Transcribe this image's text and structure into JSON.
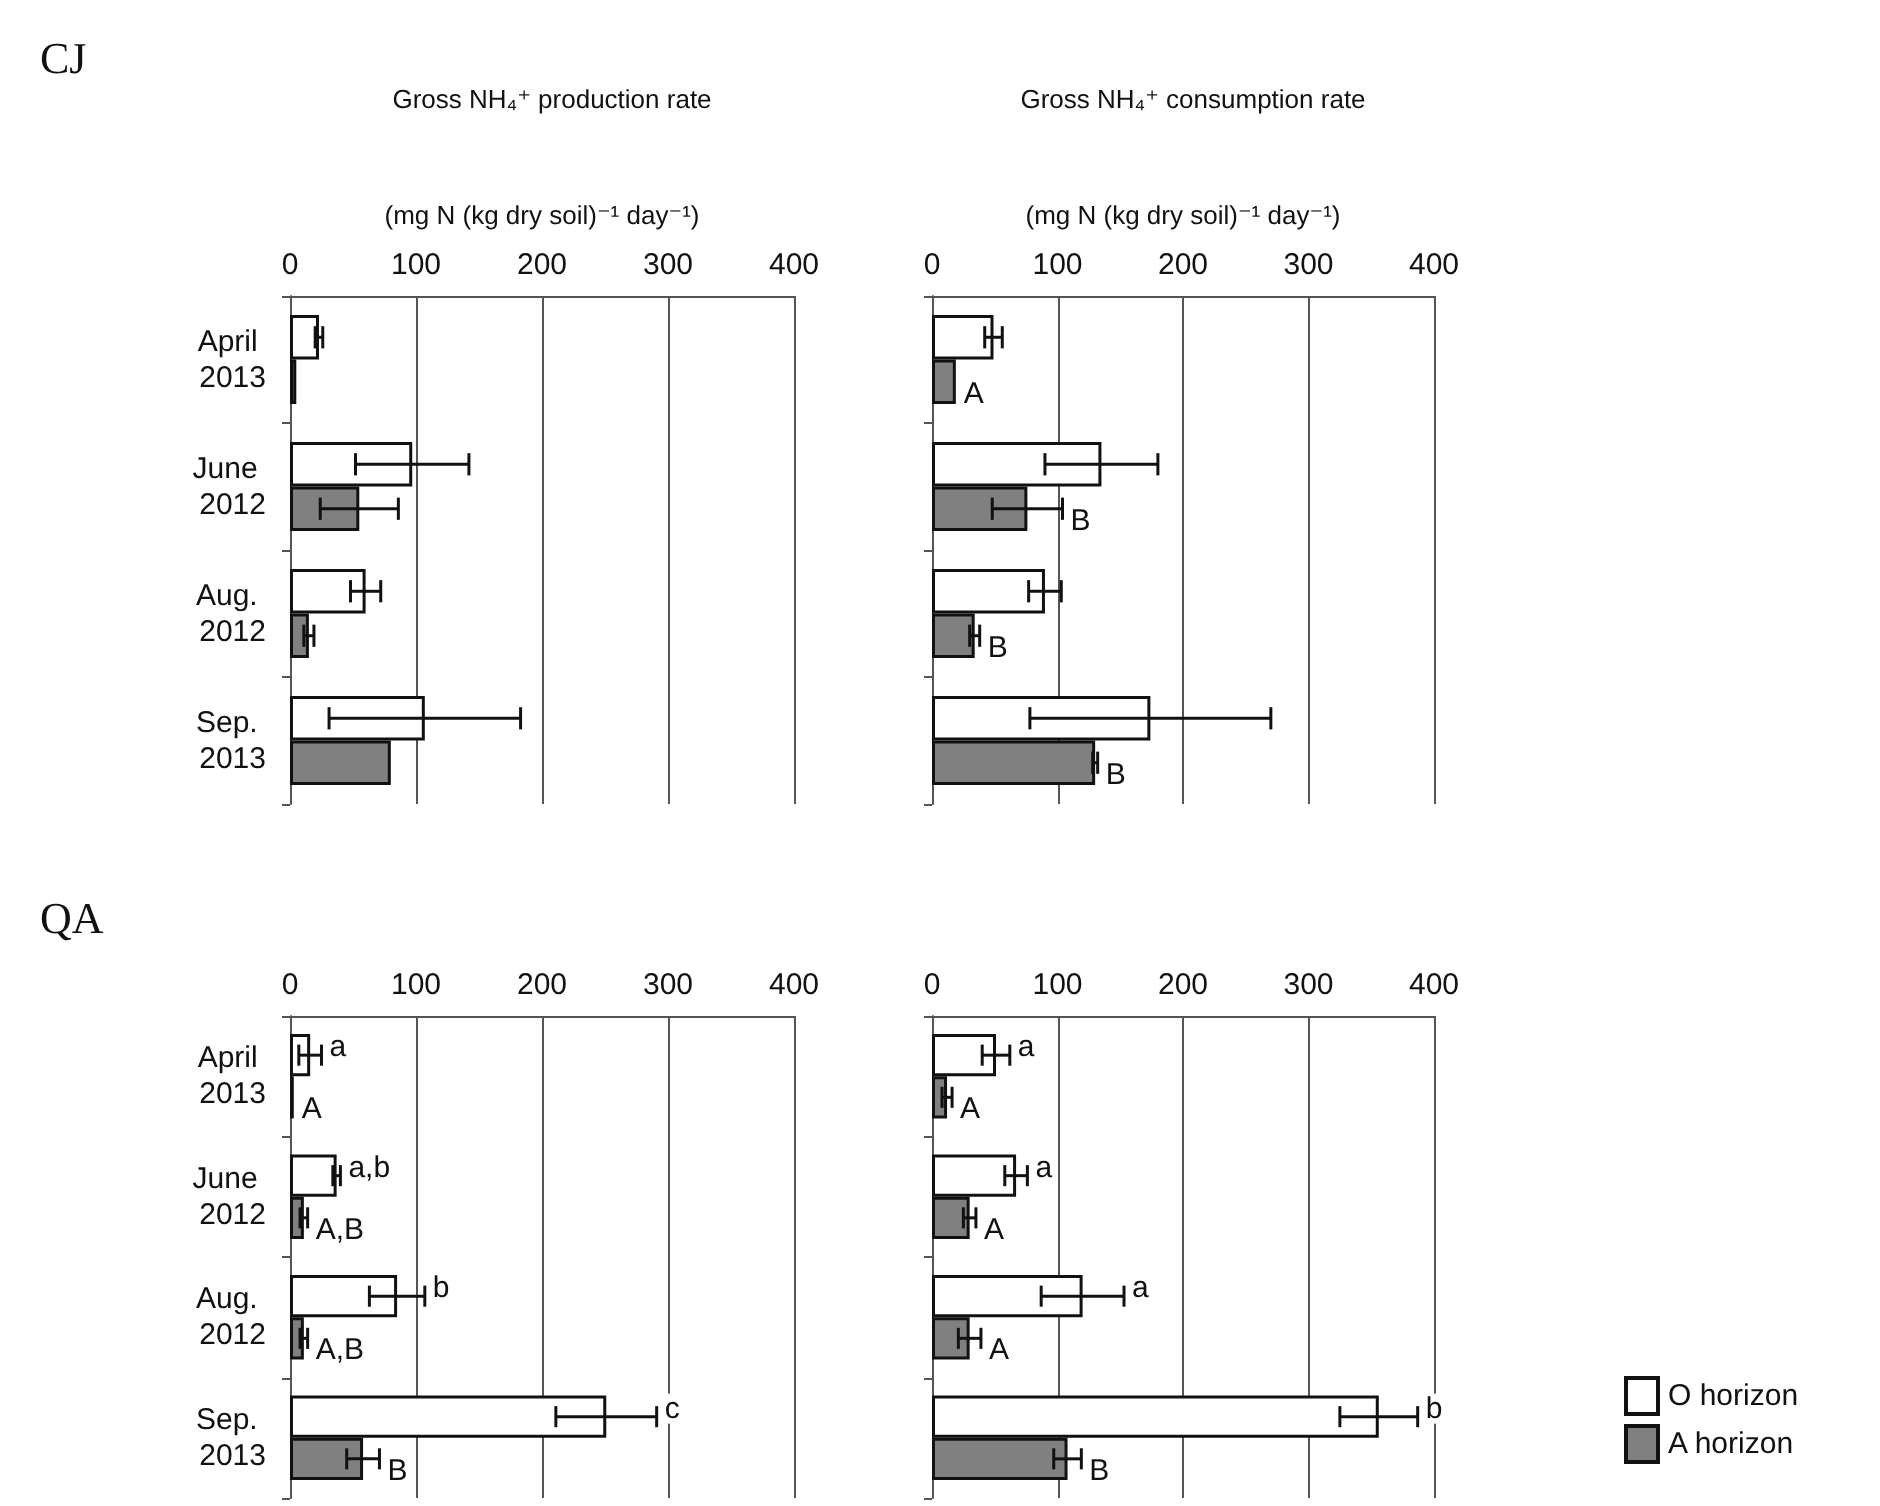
{
  "chart_data": [
    {
      "type": "bar",
      "orientation": "horizontal",
      "title": "Gross NH₄⁺ production rate",
      "xlabel": "(mg N (kg dry soil)⁻¹ day⁻¹)",
      "annotations": [
        "CJ"
      ],
      "categories": [
        "April 2013",
        "June 2012",
        "Aug. 2012",
        "Sep. 2013"
      ],
      "xlim": [
        0,
        400
      ],
      "xticks": [
        0,
        100,
        200,
        300,
        400
      ],
      "grid": "x",
      "legend": false,
      "series": [
        {
          "color": "#ffffff",
          "values": [
            23,
            97,
            60,
            107
          ],
          "errors": [
            3,
            45,
            12,
            76
          ]
        },
        {
          "color": "#808080",
          "values": [
            5,
            55,
            15,
            80
          ],
          "errors": [
            null,
            31,
            4,
            null
          ]
        }
      ]
    },
    {
      "type": "bar",
      "orientation": "horizontal",
      "title": "Gross NH₄⁺ consumption rate",
      "xlabel": "(mg N (kg dry soil)⁻¹ day⁻¹)",
      "categories": [
        "April 2013",
        "June 2012",
        "Aug. 2012",
        "Sep. 2013"
      ],
      "xlim": [
        0,
        400
      ],
      "xticks": [
        0,
        100,
        200,
        300,
        400
      ],
      "grid": "x",
      "legend": false,
      "tick_labels": "x",
      "series": [
        {
          "color": "#ffffff",
          "values": [
            49,
            135,
            90,
            174
          ],
          "errors": [
            7,
            45,
            13,
            96
          ]
        },
        {
          "color": "#808080",
          "values": [
            19,
            76,
            34,
            130
          ],
          "errors": [
            null,
            28,
            4,
            2
          ],
          "value_labels": [
            "A",
            "B",
            "B",
            "B"
          ]
        }
      ]
    },
    {
      "type": "bar",
      "orientation": "horizontal",
      "annotations": [
        "QA"
      ],
      "categories": [
        "April 2013",
        "June 2012",
        "Aug. 2012",
        "Sep. 2013"
      ],
      "xlim": [
        0,
        400
      ],
      "xticks": [
        0,
        100,
        200,
        300,
        400
      ],
      "grid": "x",
      "legend": false,
      "series": [
        {
          "color": "#ffffff",
          "values": [
            16,
            37,
            85,
            251
          ],
          "errors": [
            9,
            3,
            22,
            40
          ],
          "value_labels": [
            "a",
            "a,b",
            "b",
            "c"
          ]
        },
        {
          "color": "#808080",
          "values": [
            3,
            11,
            11,
            58
          ],
          "errors": [
            null,
            3,
            3,
            13
          ],
          "value_labels": [
            "A",
            "A,B",
            "A,B",
            "B"
          ]
        }
      ]
    },
    {
      "type": "bar",
      "orientation": "horizontal",
      "categories": [
        "April 2013",
        "June 2012",
        "Aug. 2012",
        "Sep. 2013"
      ],
      "xlim": [
        0,
        400
      ],
      "xticks": [
        0,
        100,
        200,
        300,
        400
      ],
      "grid": "x",
      "legend": "right",
      "tick_labels": "x",
      "series": [
        {
          "name": "O horizon",
          "color": "#ffffff",
          "values": [
            51,
            67,
            120,
            356
          ],
          "errors": [
            11,
            9,
            33,
            31
          ],
          "value_labels": [
            "a",
            "a",
            "a",
            "b"
          ]
        },
        {
          "name": "A horizon",
          "color": "#808080",
          "values": [
            12,
            30,
            30,
            108
          ],
          "errors": [
            4,
            5,
            9,
            11
          ],
          "value_labels": [
            "A",
            "A",
            "A",
            "B"
          ]
        }
      ]
    }
  ]
}
